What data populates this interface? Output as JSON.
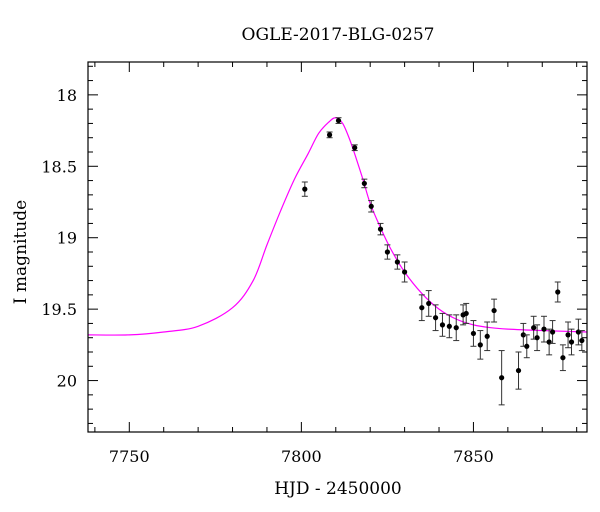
{
  "chart_data": {
    "type": "scatter",
    "title": "OGLE-2017-BLG-0257",
    "xlabel": "HJD - 2450000",
    "ylabel": "I magnitude",
    "xlim": [
      7738,
      7883
    ],
    "ylim": [
      17.77,
      20.36
    ],
    "y_inverted": true,
    "x_ticks": [
      7750,
      7800,
      7850
    ],
    "y_ticks": [
      18,
      18.5,
      19,
      19.5,
      20
    ],
    "x_tick_labels": [
      "7750",
      "7800",
      "7850"
    ],
    "y_tick_labels": [
      "18",
      "18.5",
      "19",
      "19.5",
      "20"
    ],
    "grid": false,
    "legend": "none",
    "series": [
      {
        "kind": "points_with_errorbars",
        "color": "#000000",
        "points": [
          {
            "x": 7801.0,
            "y": 18.66,
            "err": 0.05
          },
          {
            "x": 7808.2,
            "y": 18.28,
            "err": 0.02
          },
          {
            "x": 7810.8,
            "y": 18.18,
            "err": 0.02
          },
          {
            "x": 7815.5,
            "y": 18.37,
            "err": 0.02
          },
          {
            "x": 7818.3,
            "y": 18.62,
            "err": 0.03
          },
          {
            "x": 7820.3,
            "y": 18.78,
            "err": 0.04
          },
          {
            "x": 7823.0,
            "y": 18.94,
            "err": 0.04
          },
          {
            "x": 7825.0,
            "y": 19.1,
            "err": 0.05
          },
          {
            "x": 7827.9,
            "y": 19.17,
            "err": 0.05
          },
          {
            "x": 7830.0,
            "y": 19.24,
            "err": 0.07
          },
          {
            "x": 7835.0,
            "y": 19.49,
            "err": 0.09
          },
          {
            "x": 7837.0,
            "y": 19.46,
            "err": 0.09
          },
          {
            "x": 7839.0,
            "y": 19.56,
            "err": 0.09
          },
          {
            "x": 7841.0,
            "y": 19.61,
            "err": 0.08
          },
          {
            "x": 7843.0,
            "y": 19.62,
            "err": 0.08
          },
          {
            "x": 7845.0,
            "y": 19.63,
            "err": 0.09
          },
          {
            "x": 7847.0,
            "y": 19.54,
            "err": 0.07
          },
          {
            "x": 7847.9,
            "y": 19.53,
            "err": 0.07
          },
          {
            "x": 7850.0,
            "y": 19.67,
            "err": 0.09
          },
          {
            "x": 7852.0,
            "y": 19.75,
            "err": 0.1
          },
          {
            "x": 7854.0,
            "y": 19.69,
            "err": 0.1
          },
          {
            "x": 7856.0,
            "y": 19.51,
            "err": 0.08
          },
          {
            "x": 7858.2,
            "y": 19.98,
            "err": 0.19
          },
          {
            "x": 7863.1,
            "y": 19.93,
            "err": 0.13
          },
          {
            "x": 7864.5,
            "y": 19.68,
            "err": 0.08
          },
          {
            "x": 7865.5,
            "y": 19.76,
            "err": 0.08
          },
          {
            "x": 7867.5,
            "y": 19.63,
            "err": 0.08
          },
          {
            "x": 7868.5,
            "y": 19.7,
            "err": 0.09
          },
          {
            "x": 7870.5,
            "y": 19.64,
            "err": 0.09
          },
          {
            "x": 7872.0,
            "y": 19.73,
            "err": 0.09
          },
          {
            "x": 7873.0,
            "y": 19.66,
            "err": 0.08
          },
          {
            "x": 7874.5,
            "y": 19.38,
            "err": 0.07
          },
          {
            "x": 7876.0,
            "y": 19.84,
            "err": 0.09
          },
          {
            "x": 7877.5,
            "y": 19.68,
            "err": 0.09
          },
          {
            "x": 7878.5,
            "y": 19.73,
            "err": 0.09
          },
          {
            "x": 7880.5,
            "y": 19.66,
            "err": 0.09
          },
          {
            "x": 7881.5,
            "y": 19.72,
            "err": 0.07
          }
        ]
      },
      {
        "kind": "model_curve",
        "color": "#ff00ff",
        "points": [
          {
            "x": 7738,
            "y": 19.68
          },
          {
            "x": 7750,
            "y": 19.68
          },
          {
            "x": 7760,
            "y": 19.66
          },
          {
            "x": 7770,
            "y": 19.62
          },
          {
            "x": 7780,
            "y": 19.49
          },
          {
            "x": 7786,
            "y": 19.3
          },
          {
            "x": 7790,
            "y": 19.05
          },
          {
            "x": 7794,
            "y": 18.81
          },
          {
            "x": 7798,
            "y": 18.59
          },
          {
            "x": 7802,
            "y": 18.41
          },
          {
            "x": 7805,
            "y": 18.27
          },
          {
            "x": 7808,
            "y": 18.19
          },
          {
            "x": 7810,
            "y": 18.16
          },
          {
            "x": 7812,
            "y": 18.2
          },
          {
            "x": 7814,
            "y": 18.31
          },
          {
            "x": 7816,
            "y": 18.45
          },
          {
            "x": 7818,
            "y": 18.6
          },
          {
            "x": 7820,
            "y": 18.76
          },
          {
            "x": 7823,
            "y": 18.93
          },
          {
            "x": 7826,
            "y": 19.08
          },
          {
            "x": 7830,
            "y": 19.24
          },
          {
            "x": 7835,
            "y": 19.39
          },
          {
            "x": 7840,
            "y": 19.5
          },
          {
            "x": 7845,
            "y": 19.57
          },
          {
            "x": 7850,
            "y": 19.61
          },
          {
            "x": 7855,
            "y": 19.63
          },
          {
            "x": 7860,
            "y": 19.64
          },
          {
            "x": 7870,
            "y": 19.65
          },
          {
            "x": 7883,
            "y": 19.66
          }
        ]
      }
    ]
  }
}
